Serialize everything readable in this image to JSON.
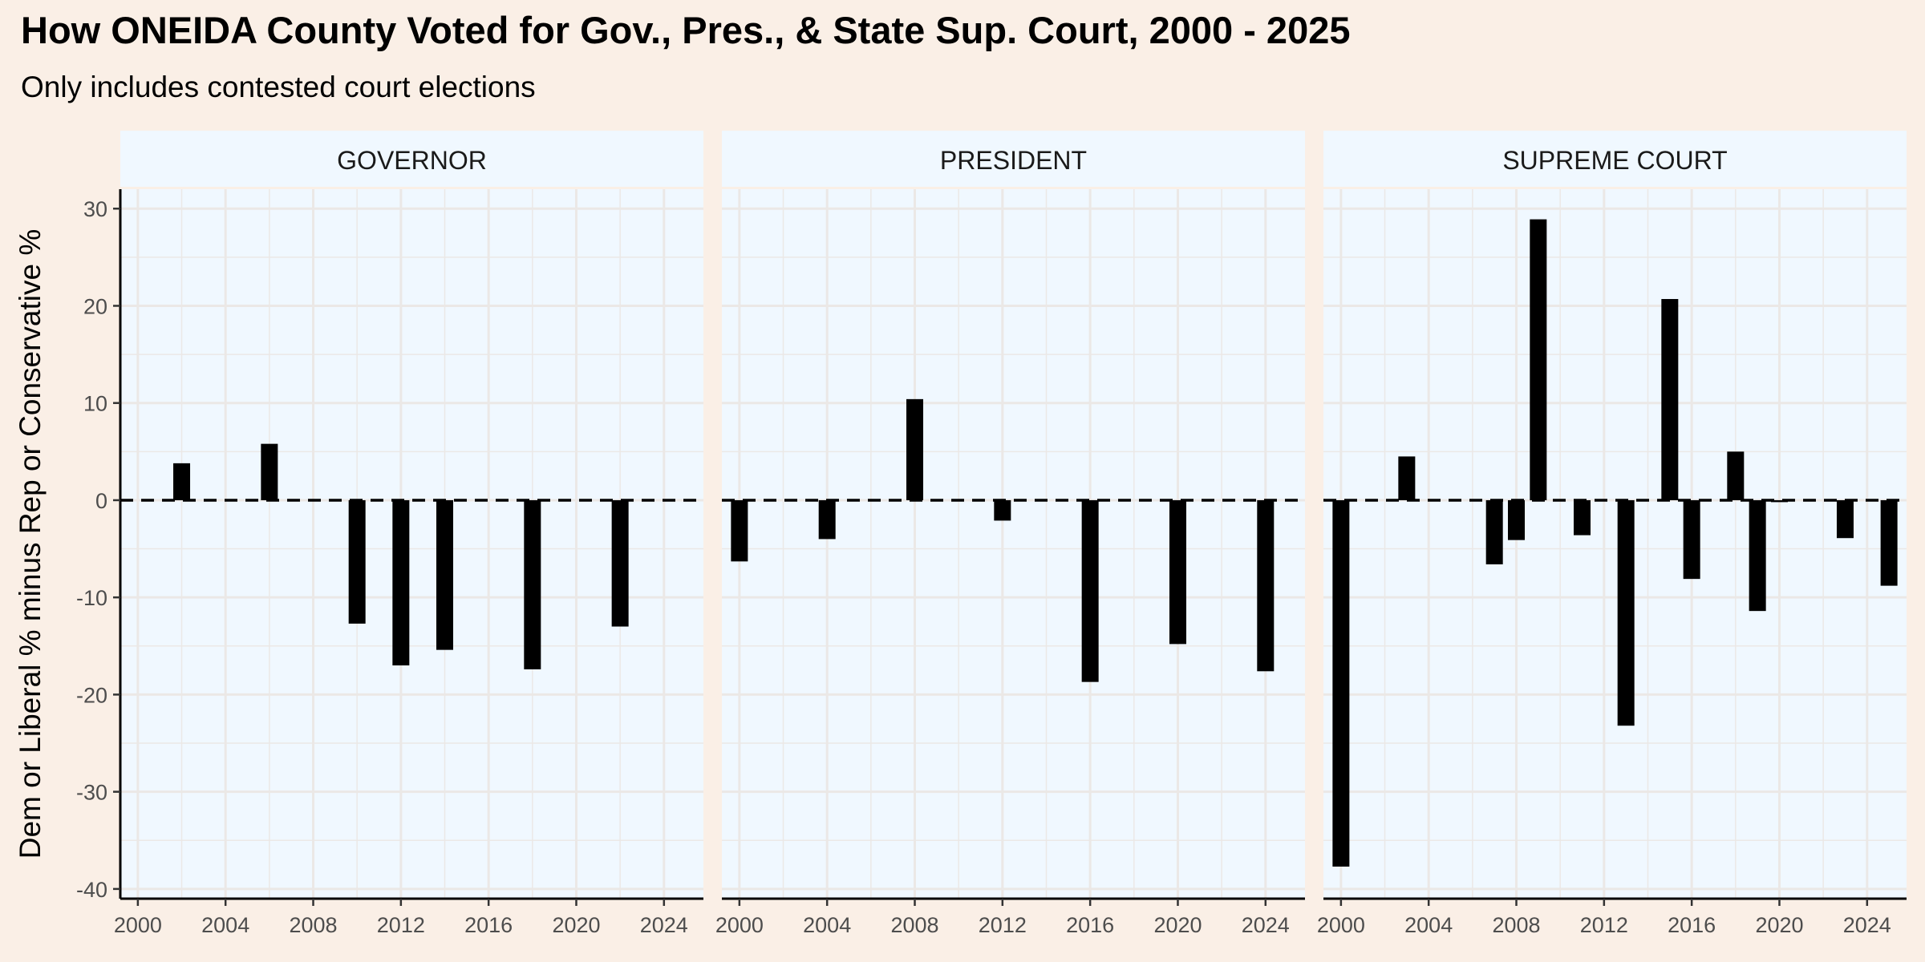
{
  "chart_data": {
    "type": "bar",
    "title": "How ONEIDA County Voted for Gov., Pres., & State Sup. Court, 2000 - 2025",
    "subtitle": "Only includes contested court elections",
    "ylabel": "Dem or Liberal % minus Rep or Conservative %",
    "xlabel": "",
    "xlim": [
      1999.2,
      2025.8
    ],
    "ylim": [
      -41,
      32
    ],
    "x_ticks": [
      "2000",
      "2004",
      "2008",
      "2012",
      "2016",
      "2020",
      "2024"
    ],
    "y_ticks": [
      "30",
      "20",
      "10",
      "0",
      "-10",
      "-20",
      "-30",
      "-40"
    ],
    "reference_line": {
      "y": 0,
      "style": "dashed"
    },
    "grid": true,
    "colors": {
      "bar": "#000000",
      "panel_background": "#f0f8ff",
      "strip_background": "#f0f8ff",
      "page_background": "#faefe6",
      "grid": "#ebe8e6"
    },
    "panels": [
      {
        "label": "GOVERNOR",
        "points": [
          {
            "x": 2002,
            "y": 3.8
          },
          {
            "x": 2006,
            "y": 5.8
          },
          {
            "x": 2010,
            "y": -12.7
          },
          {
            "x": 2012,
            "y": -17.0
          },
          {
            "x": 2014,
            "y": -15.4
          },
          {
            "x": 2018,
            "y": -17.4
          },
          {
            "x": 2022,
            "y": -13.0
          }
        ]
      },
      {
        "label": "PRESIDENT",
        "points": [
          {
            "x": 2000,
            "y": -6.3
          },
          {
            "x": 2004,
            "y": -4.0
          },
          {
            "x": 2008,
            "y": 10.4
          },
          {
            "x": 2012,
            "y": -2.1
          },
          {
            "x": 2016,
            "y": -18.7
          },
          {
            "x": 2020,
            "y": -14.8
          },
          {
            "x": 2024,
            "y": -17.6
          }
        ]
      },
      {
        "label": "SUPREME COURT",
        "points": [
          {
            "x": 2000,
            "y": -37.7
          },
          {
            "x": 2003,
            "y": 4.5
          },
          {
            "x": 2007,
            "y": -6.6
          },
          {
            "x": 2008,
            "y": -4.1
          },
          {
            "x": 2009,
            "y": 28.9
          },
          {
            "x": 2011,
            "y": -3.6
          },
          {
            "x": 2013,
            "y": -23.2
          },
          {
            "x": 2015,
            "y": 20.7
          },
          {
            "x": 2016,
            "y": -8.1
          },
          {
            "x": 2018,
            "y": 5.0
          },
          {
            "x": 2019,
            "y": -11.4
          },
          {
            "x": 2020,
            "y": -0.2
          },
          {
            "x": 2023,
            "y": -3.9
          },
          {
            "x": 2025,
            "y": -8.8
          }
        ]
      }
    ]
  }
}
